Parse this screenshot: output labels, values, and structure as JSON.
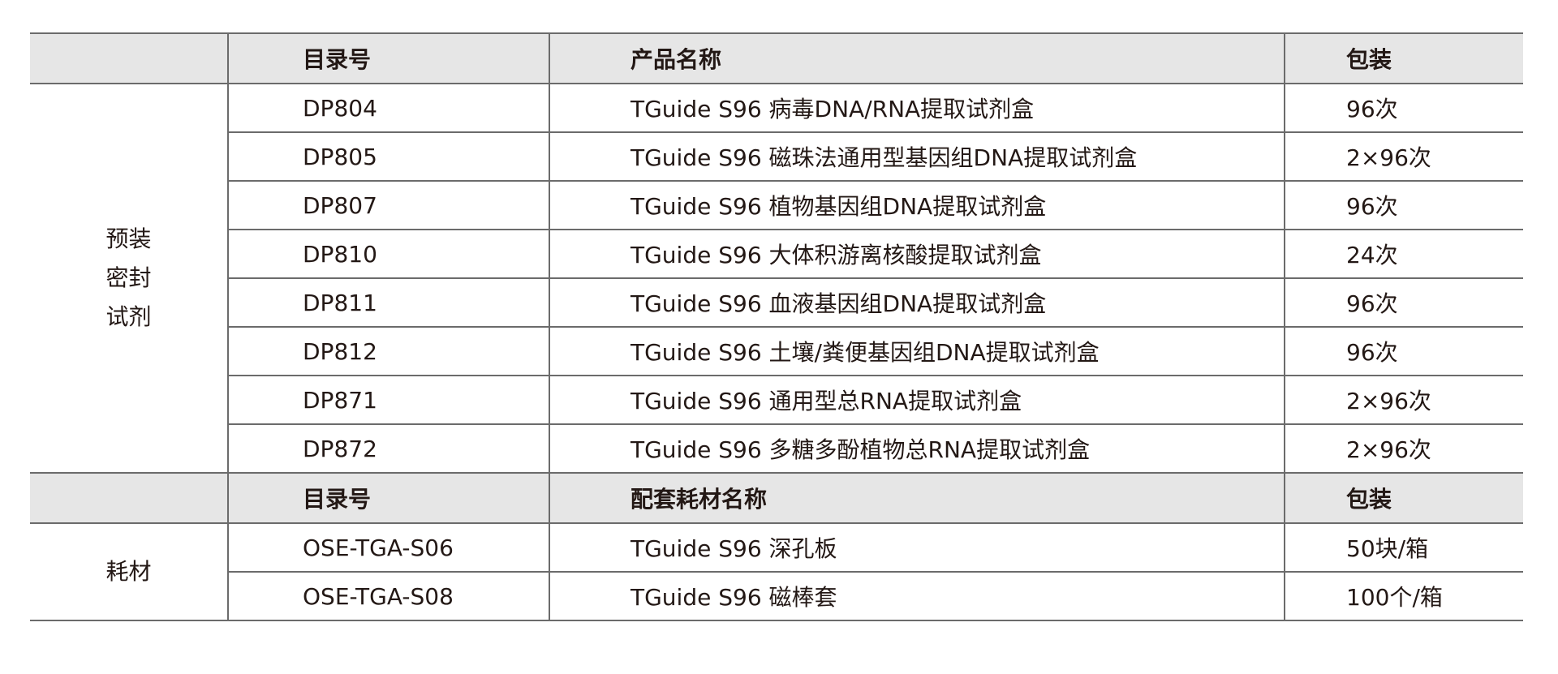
{
  "sections": [
    {
      "category": "预装\n密封\n试剂",
      "category_lines": [
        "预装",
        "密封",
        "试剂"
      ],
      "headers": [
        "目录号",
        "产品名称",
        "包装"
      ],
      "rows": [
        [
          "DP804",
          "TGuide S96 病毒DNA/RNA提取试剂盒",
          "96次"
        ],
        [
          "DP805",
          "TGuide S96 磁珠法通用型基因组DNA提取试剂盒",
          "2×96次"
        ],
        [
          "DP807",
          "TGuide S96 植物基因组DNA提取试剂盒",
          "96次"
        ],
        [
          "DP810",
          "TGuide S96 大体积游离核酸提取试剂盒",
          "24次"
        ],
        [
          "DP811",
          "TGuide S96 血液基因组DNA提取试剂盒",
          "96次"
        ],
        [
          "DP812",
          "TGuide S96 土壤/粪便基因组DNA提取试剂盒",
          "96次"
        ],
        [
          "DP871",
          "TGuide S96 通用型总RNA提取试剂盒",
          "2×96次"
        ],
        [
          "DP872",
          "TGuide S96 多糖多酚植物总RNA提取试剂盒",
          "2×96次"
        ]
      ]
    },
    {
      "category_lines": [
        "耗材"
      ],
      "headers": [
        "目录号",
        "配套耗材名称",
        "包装"
      ],
      "rows": [
        [
          "OSE-TGA-S06",
          "TGuide S96 深孔板",
          "50块/箱"
        ],
        [
          "OSE-TGA-S08",
          "TGuide S96 磁棒套",
          "100个/箱"
        ]
      ]
    }
  ]
}
